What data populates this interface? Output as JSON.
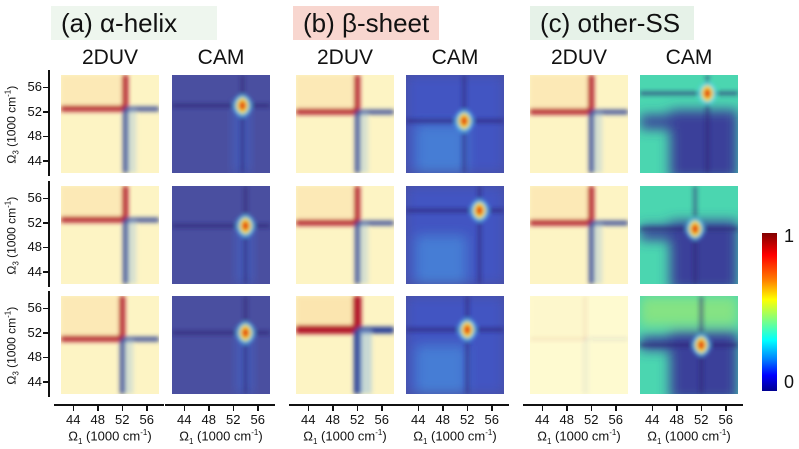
{
  "figure": {
    "groups": [
      {
        "id": "a",
        "label": "(a) α-helix",
        "bg": "#eef6ee"
      },
      {
        "id": "b",
        "label": "(b) β-sheet",
        "bg": "#f8d6cf"
      },
      {
        "id": "c",
        "label": "(c) other-SS",
        "bg": "#e6f2e8"
      }
    ],
    "column_titles": [
      "2DUV",
      "CAM",
      "2DUV",
      "CAM",
      "2DUV",
      "CAM"
    ],
    "colorbar": {
      "max_label": "1",
      "min_label": "0",
      "colormap": "jet"
    }
  },
  "chart_data": {
    "type": "heatmap",
    "title": "",
    "layout": "3 rows × 6 columns of 2D maps (2DUV spectra and CAM attention maps per secondary-structure class)",
    "xlabel": "Ω1 (1000 cm-1)",
    "ylabel": "Ω3 (1000 cm-1)",
    "xlim": [
      42,
      58
    ],
    "ylim": [
      42,
      58
    ],
    "xticks": [
      "44",
      "48",
      "52",
      "56"
    ],
    "yticks": [
      "56",
      "52",
      "48",
      "44"
    ],
    "colorbar": {
      "min": 0,
      "max": 1,
      "ticks": [
        "0",
        "1"
      ]
    },
    "panels": [
      {
        "group": "a",
        "column": "2DUV",
        "row": 1,
        "peak_center": [
          52.5,
          52.5
        ],
        "description": "red positive cross above diagonal, blue negative below"
      },
      {
        "group": "a",
        "column": "CAM",
        "row": 1,
        "hotspot": [
          53.5,
          53
        ]
      },
      {
        "group": "b",
        "column": "2DUV",
        "row": 1,
        "peak_center": [
          52,
          52
        ]
      },
      {
        "group": "b",
        "column": "CAM",
        "row": 1,
        "hotspot": [
          51.5,
          50.5
        ]
      },
      {
        "group": "c",
        "column": "2DUV",
        "row": 1,
        "peak_center": [
          52,
          52
        ]
      },
      {
        "group": "c",
        "column": "CAM",
        "row": 1,
        "hotspot": [
          53,
          55
        ]
      },
      {
        "group": "a",
        "column": "2DUV",
        "row": 2,
        "peak_center": [
          52.5,
          52.5
        ]
      },
      {
        "group": "a",
        "column": "CAM",
        "row": 2,
        "hotspot": [
          54,
          51.5
        ]
      },
      {
        "group": "b",
        "column": "2DUV",
        "row": 2,
        "peak_center": [
          52,
          52
        ]
      },
      {
        "group": "b",
        "column": "CAM",
        "row": 2,
        "hotspot": [
          54,
          54
        ]
      },
      {
        "group": "c",
        "column": "2DUV",
        "row": 2,
        "peak_center": [
          52,
          52
        ]
      },
      {
        "group": "c",
        "column": "CAM",
        "row": 2,
        "hotspot": [
          51,
          51
        ]
      },
      {
        "group": "a",
        "column": "2DUV",
        "row": 3,
        "peak_center": [
          52,
          51
        ]
      },
      {
        "group": "a",
        "column": "CAM",
        "row": 3,
        "hotspot": [
          54,
          52
        ]
      },
      {
        "group": "b",
        "column": "2DUV",
        "row": 3,
        "peak_center": [
          52,
          52.5
        ]
      },
      {
        "group": "b",
        "column": "CAM",
        "row": 3,
        "hotspot": [
          52,
          52.5
        ]
      },
      {
        "group": "c",
        "column": "2DUV",
        "row": 3,
        "peak_center": [
          51,
          51
        ]
      },
      {
        "group": "c",
        "column": "CAM",
        "row": 3,
        "hotspot": [
          52,
          50
        ]
      }
    ]
  },
  "axes": {
    "ylabel_html_main": "Ω",
    "ylabel_sub": "3",
    "ylabel_rest": " (1000 cm",
    "xlabel_main": "Ω",
    "xlabel_sub": "1",
    "xlabel_rest": " (1000 cm",
    "sup": "-1",
    "close": ")"
  }
}
